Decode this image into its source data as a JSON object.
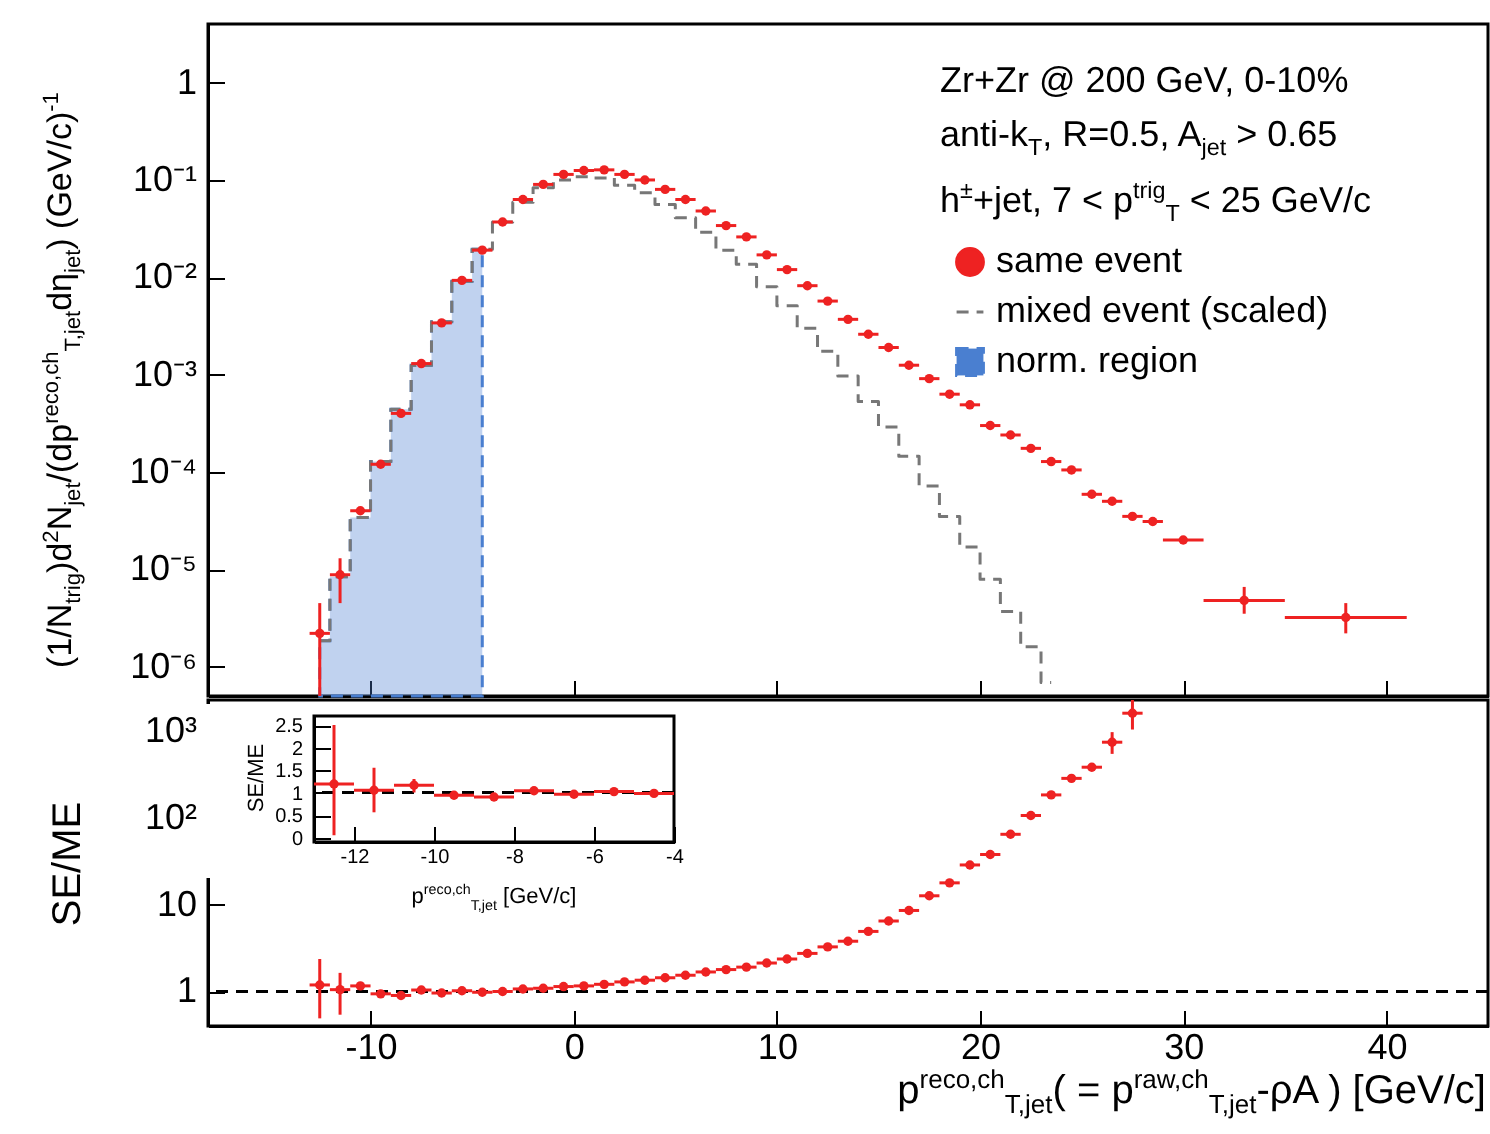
{
  "chart_data": [
    {
      "type": "scatter",
      "ylabel": "(1/N$_{trig}$)d$^{2}$N$_{jet}$/(dp$^{reco,ch}$$_{T,jet}$dη$_{jet}$) (GeV/c)$^{-1}$",
      "annotations": [
        "Zr+Zr @ 200 GeV, 0-10%",
        "anti-k$_{T}$, R=0.5, A$_{jet}$ > 0.65",
        "h$^{±}$+jet, 7 < p$^{trig}$$_{T}$ < 25 GeV/c"
      ],
      "xlim": [
        -18,
        45
      ],
      "xticks": [
        -10,
        0,
        10,
        20,
        30,
        40
      ],
      "ylim": [
        5e-07,
        4
      ],
      "yticks": [
        {
          "value": 1e-06,
          "label": "10⁻⁶"
        },
        {
          "value": 1e-05,
          "label": "10⁻⁵"
        },
        {
          "value": 0.0001,
          "label": "10⁻⁴"
        },
        {
          "value": 0.001,
          "label": "10⁻³"
        },
        {
          "value": 0.01,
          "label": "10⁻²"
        },
        {
          "value": 0.1,
          "label": "10⁻¹"
        },
        1
      ],
      "log": true,
      "tick_labels": "y",
      "legend": "top right",
      "marker": "circle",
      "series": [
        {
          "name": "same event",
          "type": "scatter",
          "color": "#ee2222",
          "x": [
            -12.5,
            -11.5,
            -10.5,
            -9.5,
            -8.5,
            -7.5,
            -6.5,
            -5.5,
            -4.5,
            -3.5,
            -2.5,
            -1.5,
            -0.5,
            0.5,
            1.5,
            2.5,
            3.5,
            4.5,
            5.5,
            6.5,
            7.5,
            8.5,
            9.5,
            10.5,
            11.5,
            12.5,
            13.5,
            14.5,
            15.5,
            16.5,
            17.5,
            18.5,
            19.5,
            20.5,
            21.5,
            22.5,
            23.5,
            24.5,
            25.5,
            26.5,
            27.5,
            28.5,
            30,
            33,
            38
          ],
          "values": [
            2.2e-06,
            8.8e-06,
            4e-05,
            0.00012,
            0.0004,
            0.0013,
            0.0034,
            0.0093,
            0.019,
            0.037,
            0.063,
            0.09,
            0.114,
            0.125,
            0.127,
            0.114,
            0.1,
            0.08,
            0.063,
            0.048,
            0.034,
            0.026,
            0.017,
            0.012,
            0.0082,
            0.0057,
            0.0037,
            0.0026,
            0.0019,
            0.00125,
            0.00091,
            0.00063,
            0.00049,
            0.0003,
            0.00024,
            0.000175,
            0.000128,
            0.000105,
            5.9e-05,
            5e-05,
            3.5e-05,
            3.1e-05,
            2e-05,
            4.8e-06,
            3.2e-06
          ],
          "errors": [
            [
              5e-07,
              4.5e-06
            ],
            [
              4.5e-06,
              1.3e-05
            ],
            null,
            null,
            null,
            null,
            null,
            null,
            null,
            null,
            null,
            null,
            null,
            null,
            null,
            null,
            null,
            null,
            null,
            null,
            null,
            null,
            null,
            null,
            null,
            null,
            null,
            null,
            null,
            null,
            null,
            null,
            null,
            null,
            null,
            null,
            null,
            null,
            null,
            null,
            null,
            null,
            null,
            [
              3.5e-06,
              6.6e-06
            ],
            [
              2.2e-06,
              4.5e-06
            ]
          ],
          "xerrors": [
            0.5,
            0.5,
            0.5,
            0.5,
            0.5,
            0.5,
            0.5,
            0.5,
            0.5,
            0.5,
            0.5,
            0.5,
            0.5,
            0.5,
            0.5,
            0.5,
            0.5,
            0.5,
            0.5,
            0.5,
            0.5,
            0.5,
            0.5,
            0.5,
            0.5,
            0.5,
            0.5,
            0.5,
            0.5,
            0.5,
            0.5,
            0.5,
            0.5,
            0.5,
            0.5,
            0.5,
            0.5,
            0.5,
            0.5,
            0.5,
            0.5,
            0.5,
            1,
            2,
            3
          ]
        },
        {
          "name": "mixed event (scaled)",
          "type": "step",
          "line_style": "dashed",
          "marker": "none",
          "color": "#777777",
          "x": [
            -12.5,
            -11.5,
            -10.5,
            -9.5,
            -8.5,
            -7.5,
            -6.5,
            -5.5,
            -4.5,
            -3.5,
            -2.5,
            -1.5,
            -0.5,
            0.5,
            1.5,
            2.5,
            3.5,
            4.5,
            5.5,
            6.5,
            7.5,
            8.5,
            9.5,
            10.5,
            11.5,
            12.5,
            13.5,
            14.5,
            15.5,
            16.5,
            17.5,
            18.5,
            19.5,
            20.5,
            21.5,
            22.5,
            23.5
          ],
          "values": [
            1.85e-06,
            8.4e-06,
            3.4e-05,
            0.000128,
            0.00044,
            0.00125,
            0.0035,
            0.0091,
            0.0194,
            0.037,
            0.059,
            0.083,
            0.1,
            0.108,
            0.105,
            0.088,
            0.074,
            0.056,
            0.041,
            0.029,
            0.019,
            0.0136,
            0.008,
            0.0051,
            0.003,
            0.00174,
            0.00097,
            0.00053,
            0.00029,
            0.000145,
            7.2e-05,
            3.5e-05,
            1.7e-05,
            7.9e-06,
            3.7e-06,
            1.6e-06,
            6.9e-07
          ]
        },
        {
          "name": "norm. region",
          "type": "area",
          "line_style": "dashed",
          "marker": "none",
          "color": "#4a7fd0",
          "x": [
            -12.5,
            -11.5,
            -10.5,
            -9.5,
            -8.5,
            -7.5,
            -6.5,
            -5.5,
            -4.5
          ],
          "values": [
            1.85e-06,
            8.4e-06,
            3.4e-05,
            0.000128,
            0.00044,
            0.00125,
            0.0035,
            0.0091,
            0.0194
          ]
        }
      ]
    },
    {
      "type": "scatter",
      "xlabel": "p$^{reco,ch}$$_{T,jet}$( = p$^{raw,ch}$$_{T,jet}$-ρA ) [GeV/c]",
      "ylabel": "SE/ME",
      "xlim": [
        -18,
        45
      ],
      "xticks": [
        -10,
        0,
        10,
        20,
        30,
        40
      ],
      "ylim": [
        0.4,
        2300
      ],
      "yticks": [
        1,
        10,
        {
          "value": 100,
          "label": "10²"
        },
        {
          "value": 1000,
          "label": "10³"
        }
      ],
      "log": true,
      "marker": "circle",
      "ref_lines": [
        {
          "axis": "y",
          "value": 1,
          "color": "#000000",
          "line_style": "dashed"
        }
      ],
      "series": [
        {
          "type": "scatter",
          "color": "#ee2222",
          "x": [
            -12.5,
            -11.5,
            -10.5,
            -9.5,
            -8.5,
            -7.5,
            -6.5,
            -5.5,
            -4.5,
            -3.5,
            -2.5,
            -1.5,
            -0.5,
            0.5,
            1.5,
            2.5,
            3.5,
            4.5,
            5.5,
            6.5,
            7.5,
            8.5,
            9.5,
            10.5,
            11.5,
            12.5,
            13.5,
            14.5,
            15.5,
            16.5,
            17.5,
            18.5,
            19.5,
            20.5,
            21.5,
            22.5,
            23.5,
            24.5,
            25.5,
            26.5,
            27.5
          ],
          "values": [
            1.19,
            1.05,
            1.16,
            0.94,
            0.9,
            1.04,
            0.96,
            1.02,
            0.98,
            1.0,
            1.07,
            1.09,
            1.14,
            1.16,
            1.21,
            1.29,
            1.35,
            1.44,
            1.54,
            1.68,
            1.79,
            1.91,
            2.13,
            2.37,
            2.75,
            3.27,
            3.8,
            4.93,
            6.5,
            8.6,
            12.7,
            17.9,
            28.8,
            38,
            65,
            107,
            185,
            287,
            386,
            750,
            1620
          ],
          "errors": [
            [
              0.49,
              2.37
            ],
            [
              0.54,
              1.64
            ],
            null,
            null,
            null,
            null,
            null,
            null,
            null,
            null,
            null,
            null,
            null,
            null,
            null,
            null,
            null,
            null,
            null,
            null,
            null,
            null,
            null,
            null,
            null,
            null,
            null,
            null,
            null,
            null,
            null,
            null,
            null,
            null,
            null,
            null,
            null,
            null,
            null,
            [
              550,
              980
            ],
            [
              1050,
              2300
            ]
          ],
          "xerrors": [
            0.5,
            0.5,
            0.5,
            0.5,
            0.5,
            0.5,
            0.5,
            0.5,
            0.5,
            0.5,
            0.5,
            0.5,
            0.5,
            0.5,
            0.5,
            0.5,
            0.5,
            0.5,
            0.5,
            0.5,
            0.5,
            0.5,
            0.5,
            0.5,
            0.5,
            0.5,
            0.5,
            0.5,
            0.5,
            0.5,
            0.5,
            0.5,
            0.5,
            0.5,
            0.5,
            0.5,
            0.5,
            0.5,
            0.5,
            0.5,
            0.5
          ]
        }
      ]
    },
    {
      "type": "scatter",
      "xlabel": "p$^{reco,ch}$$_{T,jet}$ [GeV/c]",
      "ylabel": "SE/ME",
      "xlim": [
        -13,
        -4
      ],
      "xticks": [
        -12,
        -10,
        -8,
        -6,
        -4
      ],
      "ylim": [
        -0.1,
        2.7
      ],
      "yticks": [
        0,
        0.5,
        1,
        1.5,
        2,
        2.5
      ],
      "marker": "circle",
      "ref_lines": [
        {
          "axis": "y",
          "value": 1,
          "color": "#000000",
          "line_style": "dashed"
        }
      ],
      "series": [
        {
          "type": "scatter",
          "color": "#ee2222",
          "x": [
            -12.5,
            -11.5,
            -10.5,
            -9.5,
            -8.5,
            -7.5,
            -6.5,
            -5.5,
            -4.5
          ],
          "values": [
            1.19,
            1.05,
            1.16,
            0.94,
            0.9,
            1.04,
            0.96,
            1.02,
            0.98
          ],
          "errors": [
            [
              0.05,
              2.5
            ],
            [
              0.56,
              1.55
            ],
            [
              1.0,
              1.3
            ],
            null,
            null,
            null,
            null,
            null,
            null
          ],
          "xerrors": [
            0.5,
            0.5,
            0.5,
            0.5,
            0.5,
            0.5,
            0.5,
            0.5,
            0.5
          ]
        }
      ]
    }
  ]
}
